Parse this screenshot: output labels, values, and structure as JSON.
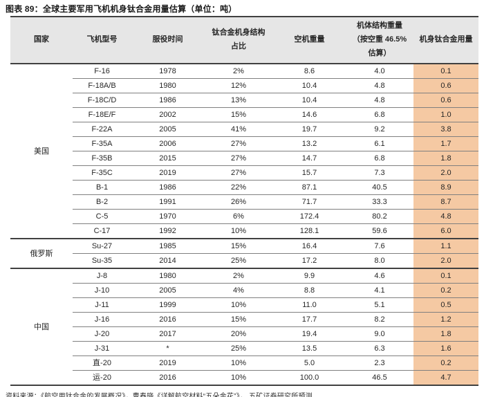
{
  "title": "图表 89：全球主要军用飞机机身钛合金用量估算（单位：吨）",
  "source": "资料来源：《航空用钛合金的发展概况》，曹春晓《详解航空材料“五朵金花”》， 五矿证券研究所预测",
  "colors": {
    "highlight_column": "#f5c9a3",
    "header_background": "#e6e6e6",
    "thin_row_line": "#7f7f7f",
    "thick_line": "#404040"
  },
  "table": {
    "headers": [
      "国家",
      "飞机型号",
      "服役时间",
      "钛合金机身结构占比",
      "空机重量",
      "机体结构重量（按空重 46.5%估算）",
      "机身钛合金用量"
    ],
    "groups": [
      {
        "country": "美国",
        "rows": [
          [
            "F-16",
            "1978",
            "2%",
            "8.6",
            "4.0",
            "0.1"
          ],
          [
            "F-18A/B",
            "1980",
            "12%",
            "10.4",
            "4.8",
            "0.6"
          ],
          [
            "F-18C/D",
            "1986",
            "13%",
            "10.4",
            "4.8",
            "0.6"
          ],
          [
            "F-18E/F",
            "2002",
            "15%",
            "14.6",
            "6.8",
            "1.0"
          ],
          [
            "F-22A",
            "2005",
            "41%",
            "19.7",
            "9.2",
            "3.8"
          ],
          [
            "F-35A",
            "2006",
            "27%",
            "13.2",
            "6.1",
            "1.7"
          ],
          [
            "F-35B",
            "2015",
            "27%",
            "14.7",
            "6.8",
            "1.8"
          ],
          [
            "F-35C",
            "2019",
            "27%",
            "15.7",
            "7.3",
            "2.0"
          ],
          [
            "B-1",
            "1986",
            "22%",
            "87.1",
            "40.5",
            "8.9"
          ],
          [
            "B-2",
            "1991",
            "26%",
            "71.7",
            "33.3",
            "8.7"
          ],
          [
            "C-5",
            "1970",
            "6%",
            "172.4",
            "80.2",
            "4.8"
          ],
          [
            "C-17",
            "1992",
            "10%",
            "128.1",
            "59.6",
            "6.0"
          ]
        ]
      },
      {
        "country": "俄罗斯",
        "rows": [
          [
            "Su-27",
            "1985",
            "15%",
            "16.4",
            "7.6",
            "1.1"
          ],
          [
            "Su-35",
            "2014",
            "25%",
            "17.2",
            "8.0",
            "2.0"
          ]
        ]
      },
      {
        "country": "中国",
        "rows": [
          [
            "J-8",
            "1980",
            "2%",
            "9.9",
            "4.6",
            "0.1"
          ],
          [
            "J-10",
            "2005",
            "4%",
            "8.8",
            "4.1",
            "0.2"
          ],
          [
            "J-11",
            "1999",
            "10%",
            "11.0",
            "5.1",
            "0.5"
          ],
          [
            "J-16",
            "2016",
            "15%",
            "17.7",
            "8.2",
            "1.2"
          ],
          [
            "J-20",
            "2017",
            "20%",
            "19.4",
            "9.0",
            "1.8"
          ],
          [
            "J-31",
            "*",
            "25%",
            "13.5",
            "6.3",
            "1.6"
          ],
          [
            "直-20",
            "2019",
            "10%",
            "5.0",
            "2.3",
            "0.2"
          ],
          [
            "运-20",
            "2016",
            "10%",
            "100.0",
            "46.5",
            "4.7"
          ]
        ]
      }
    ]
  }
}
